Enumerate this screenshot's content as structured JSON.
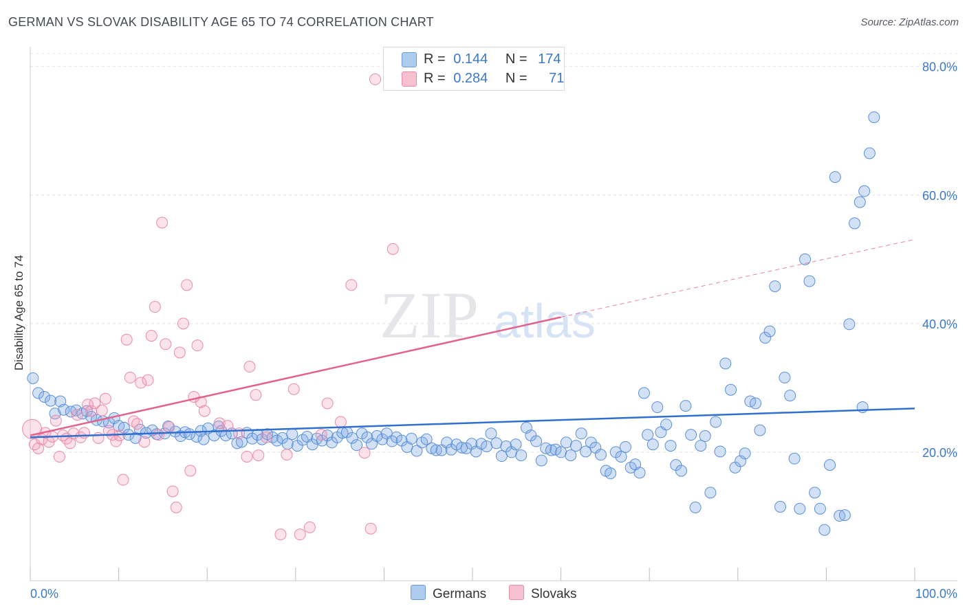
{
  "header": {
    "title": "GERMAN VS SLOVAK DISABILITY AGE 65 TO 74 CORRELATION CHART",
    "source": "Source: ZipAtlas.com"
  },
  "legend": {
    "r_label": "R =",
    "n_label": "N =",
    "entries": [
      {
        "r": "0.144",
        "n": "174",
        "color": "#aecbf0",
        "stroke": "#6a9ad8"
      },
      {
        "r": "0.284",
        "n": "71",
        "color": "#f7c0d0",
        "stroke": "#e88aa6"
      }
    ]
  },
  "bottom_legend": {
    "germans": "Germans",
    "slovaks": "Slovaks"
  },
  "colors": {
    "german_fill": "rgba(125,170,228,0.35)",
    "german_stroke": "#5b8fd6",
    "german_line": "#2f6fcf",
    "slovak_fill": "rgba(244,160,185,0.30)",
    "slovak_stroke": "#e98aa8",
    "slovak_line": "#e2628c",
    "axis_text": "#3b78c8",
    "grid": "#e1e4e8"
  },
  "chart_data": {
    "type": "scatter",
    "title": "GERMAN VS SLOVAK DISABILITY AGE 65 TO 74 CORRELATION CHART",
    "xlabel": "",
    "ylabel": "Disability Age 65 to 74",
    "xlim": [
      0,
      100
    ],
    "ylim": [
      0,
      82
    ],
    "x_tick_labels": [
      "0.0%",
      "100.0%"
    ],
    "y_ticks": [
      20,
      40,
      60,
      80
    ],
    "y_tick_labels": [
      "20.0%",
      "40.0%",
      "60.0%",
      "80.0%"
    ],
    "grid": true,
    "legend_position": "top-center",
    "watermark": "ZIPatlas",
    "series": [
      {
        "name": "Germans",
        "r": 0.144,
        "n": 174,
        "trend": {
          "x0": 0,
          "y0": 22.3,
          "x1": 100,
          "y1": 26.8
        },
        "points": [
          [
            0.3,
            31.5
          ],
          [
            0.9,
            29.2
          ],
          [
            1.6,
            28.6
          ],
          [
            2.3,
            28.0
          ],
          [
            3.4,
            27.9
          ],
          [
            2.8,
            26.0
          ],
          [
            3.8,
            26.6
          ],
          [
            4.6,
            26.3
          ],
          [
            5.2,
            26.5
          ],
          [
            5.9,
            26.0
          ],
          [
            6.4,
            26.4
          ],
          [
            6.9,
            25.5
          ],
          [
            7.5,
            25.0
          ],
          [
            8.2,
            24.8
          ],
          [
            8.9,
            24.6
          ],
          [
            9.5,
            25.3
          ],
          [
            10.0,
            24.1
          ],
          [
            10.6,
            23.8
          ],
          [
            11.1,
            22.7
          ],
          [
            11.9,
            22.2
          ],
          [
            12.4,
            23.5
          ],
          [
            13.1,
            23.0
          ],
          [
            13.8,
            23.4
          ],
          [
            14.3,
            22.8
          ],
          [
            15.2,
            22.9
          ],
          [
            15.6,
            24.0
          ],
          [
            16.4,
            23.2
          ],
          [
            17.0,
            22.5
          ],
          [
            17.5,
            23.1
          ],
          [
            18.0,
            22.8
          ],
          [
            18.8,
            22.4
          ],
          [
            19.3,
            23.3
          ],
          [
            19.6,
            22.0
          ],
          [
            20.1,
            23.7
          ],
          [
            20.8,
            22.6
          ],
          [
            21.3,
            24.0
          ],
          [
            21.6,
            23.3
          ],
          [
            22.1,
            22.6
          ],
          [
            22.8,
            22.9
          ],
          [
            23.4,
            21.4
          ],
          [
            23.9,
            21.6
          ],
          [
            24.5,
            23.0
          ],
          [
            25.1,
            22.1
          ],
          [
            25.7,
            22.7
          ],
          [
            26.2,
            22.0
          ],
          [
            26.8,
            22.8
          ],
          [
            27.4,
            22.3
          ],
          [
            27.9,
            21.8
          ],
          [
            28.5,
            22.2
          ],
          [
            29.1,
            21.3
          ],
          [
            29.6,
            22.8
          ],
          [
            30.2,
            21.0
          ],
          [
            30.8,
            21.9
          ],
          [
            31.3,
            22.4
          ],
          [
            31.9,
            21.2
          ],
          [
            32.4,
            22.1
          ],
          [
            33.0,
            21.8
          ],
          [
            33.6,
            22.6
          ],
          [
            34.1,
            21.5
          ],
          [
            34.7,
            22.3
          ],
          [
            35.3,
            23.0
          ],
          [
            35.8,
            23.1
          ],
          [
            36.4,
            22.2
          ],
          [
            36.9,
            21.1
          ],
          [
            37.5,
            22.9
          ],
          [
            38.1,
            22.3
          ],
          [
            38.6,
            21.3
          ],
          [
            39.2,
            22.5
          ],
          [
            39.8,
            22.0
          ],
          [
            40.3,
            22.9
          ],
          [
            40.9,
            21.7
          ],
          [
            41.4,
            22.3
          ],
          [
            42.0,
            21.8
          ],
          [
            42.6,
            20.8
          ],
          [
            43.1,
            22.1
          ],
          [
            43.7,
            20.2
          ],
          [
            44.3,
            21.5
          ],
          [
            44.8,
            22.0
          ],
          [
            45.4,
            20.6
          ],
          [
            45.9,
            20.3
          ],
          [
            46.5,
            20.3
          ],
          [
            47.1,
            21.5
          ],
          [
            47.6,
            20.4
          ],
          [
            48.2,
            21.2
          ],
          [
            48.8,
            20.7
          ],
          [
            49.3,
            20.6
          ],
          [
            49.9,
            21.3
          ],
          [
            50.4,
            20.1
          ],
          [
            51.0,
            21.3
          ],
          [
            51.6,
            20.9
          ],
          [
            52.1,
            22.9
          ],
          [
            52.7,
            21.4
          ],
          [
            53.3,
            19.4
          ],
          [
            53.8,
            20.9
          ],
          [
            54.4,
            20.0
          ],
          [
            54.9,
            21.2
          ],
          [
            55.5,
            19.5
          ],
          [
            56.1,
            23.8
          ],
          [
            56.6,
            22.6
          ],
          [
            57.2,
            21.7
          ],
          [
            57.8,
            18.7
          ],
          [
            58.3,
            20.6
          ],
          [
            58.9,
            20.3
          ],
          [
            59.4,
            20.4
          ],
          [
            60.0,
            20.0
          ],
          [
            60.6,
            21.5
          ],
          [
            61.1,
            19.5
          ],
          [
            61.7,
            21.0
          ],
          [
            62.3,
            22.9
          ],
          [
            62.8,
            20.1
          ],
          [
            63.4,
            21.5
          ],
          [
            63.9,
            20.7
          ],
          [
            64.5,
            19.6
          ],
          [
            65.1,
            17.1
          ],
          [
            65.6,
            16.7
          ],
          [
            66.2,
            20.0
          ],
          [
            66.8,
            19.3
          ],
          [
            67.3,
            20.8
          ],
          [
            67.9,
            17.6
          ],
          [
            68.4,
            18.1
          ],
          [
            68.9,
            16.8
          ],
          [
            69.4,
            29.2
          ],
          [
            69.8,
            22.7
          ],
          [
            70.4,
            21.2
          ],
          [
            70.9,
            27.0
          ],
          [
            71.3,
            23.1
          ],
          [
            71.9,
            24.3
          ],
          [
            72.4,
            21.0
          ],
          [
            73.0,
            18.0
          ],
          [
            73.6,
            17.1
          ],
          [
            74.1,
            27.2
          ],
          [
            74.7,
            22.7
          ],
          [
            75.2,
            11.4
          ],
          [
            75.8,
            21.0
          ],
          [
            76.3,
            22.5
          ],
          [
            76.9,
            13.7
          ],
          [
            77.5,
            24.7
          ],
          [
            78.0,
            20.1
          ],
          [
            78.6,
            33.8
          ],
          [
            79.2,
            29.7
          ],
          [
            79.7,
            17.6
          ],
          [
            80.3,
            18.6
          ],
          [
            80.8,
            19.8
          ],
          [
            81.4,
            27.9
          ],
          [
            82.0,
            27.6
          ],
          [
            82.5,
            23.4
          ],
          [
            83.1,
            37.8
          ],
          [
            83.6,
            38.8
          ],
          [
            84.2,
            45.8
          ],
          [
            84.8,
            11.5
          ],
          [
            85.3,
            31.6
          ],
          [
            85.9,
            28.8
          ],
          [
            86.4,
            19.0
          ],
          [
            87.0,
            11.2
          ],
          [
            87.6,
            50.0
          ],
          [
            88.1,
            46.6
          ],
          [
            88.7,
            13.7
          ],
          [
            89.3,
            11.2
          ],
          [
            89.8,
            7.9
          ],
          [
            90.4,
            18.0
          ],
          [
            91.0,
            62.8
          ],
          [
            91.5,
            10.1
          ],
          [
            92.1,
            10.2
          ],
          [
            92.6,
            39.9
          ],
          [
            93.2,
            55.6
          ],
          [
            93.8,
            58.9
          ],
          [
            94.3,
            60.6
          ],
          [
            94.9,
            66.5
          ],
          [
            95.4,
            72.1
          ],
          [
            94.1,
            27.0
          ]
        ]
      },
      {
        "name": "Slovaks",
        "r": 0.284,
        "n": 71,
        "trend": {
          "x0": 0,
          "y0": 22.6,
          "x1": 60,
          "y1": 41.0,
          "x_dash_end": 100,
          "y_dash_end": 53.1
        },
        "points": [
          [
            0.2,
            23.6
          ],
          [
            0.5,
            21.2
          ],
          [
            0.9,
            20.6
          ],
          [
            1.3,
            22.0
          ],
          [
            1.7,
            23.0
          ],
          [
            2.1,
            21.6
          ],
          [
            2.5,
            22.4
          ],
          [
            2.9,
            24.9
          ],
          [
            3.3,
            19.3
          ],
          [
            3.7,
            22.6
          ],
          [
            4.1,
            22.1
          ],
          [
            4.5,
            21.4
          ],
          [
            4.9,
            22.9
          ],
          [
            5.3,
            25.8
          ],
          [
            5.7,
            22.3
          ],
          [
            6.1,
            23.0
          ],
          [
            6.5,
            27.4
          ],
          [
            6.9,
            26.4
          ],
          [
            7.3,
            27.6
          ],
          [
            7.7,
            22.2
          ],
          [
            8.1,
            26.5
          ],
          [
            8.5,
            28.3
          ],
          [
            8.9,
            23.3
          ],
          [
            9.3,
            22.7
          ],
          [
            9.7,
            21.7
          ],
          [
            10.1,
            22.6
          ],
          [
            10.5,
            15.7
          ],
          [
            10.9,
            37.5
          ],
          [
            11.3,
            31.6
          ],
          [
            11.7,
            24.8
          ],
          [
            12.1,
            24.4
          ],
          [
            12.5,
            30.8
          ],
          [
            12.9,
            21.6
          ],
          [
            13.3,
            31.2
          ],
          [
            13.7,
            38.1
          ],
          [
            14.1,
            42.6
          ],
          [
            14.5,
            22.7
          ],
          [
            14.9,
            55.7
          ],
          [
            15.3,
            36.8
          ],
          [
            15.7,
            23.9
          ],
          [
            16.1,
            13.9
          ],
          [
            16.5,
            11.4
          ],
          [
            16.9,
            35.5
          ],
          [
            17.3,
            40.0
          ],
          [
            17.7,
            46.0
          ],
          [
            18.1,
            17.1
          ],
          [
            18.5,
            28.6
          ],
          [
            18.9,
            36.6
          ],
          [
            19.3,
            27.8
          ],
          [
            19.7,
            26.4
          ],
          [
            21.4,
            24.5
          ],
          [
            22.3,
            24.1
          ],
          [
            23.6,
            22.9
          ],
          [
            24.5,
            19.3
          ],
          [
            24.8,
            33.3
          ],
          [
            25.5,
            28.9
          ],
          [
            25.8,
            19.5
          ],
          [
            26.7,
            22.3
          ],
          [
            28.3,
            7.2
          ],
          [
            29.0,
            19.6
          ],
          [
            29.8,
            29.8
          ],
          [
            30.5,
            7.2
          ],
          [
            31.6,
            8.3
          ],
          [
            32.9,
            22.7
          ],
          [
            33.6,
            27.6
          ],
          [
            35.1,
            24.7
          ],
          [
            36.3,
            46.0
          ],
          [
            37.8,
            19.9
          ],
          [
            38.5,
            8.1
          ],
          [
            39.0,
            78.0
          ],
          [
            41.0,
            51.6
          ]
        ]
      }
    ]
  }
}
